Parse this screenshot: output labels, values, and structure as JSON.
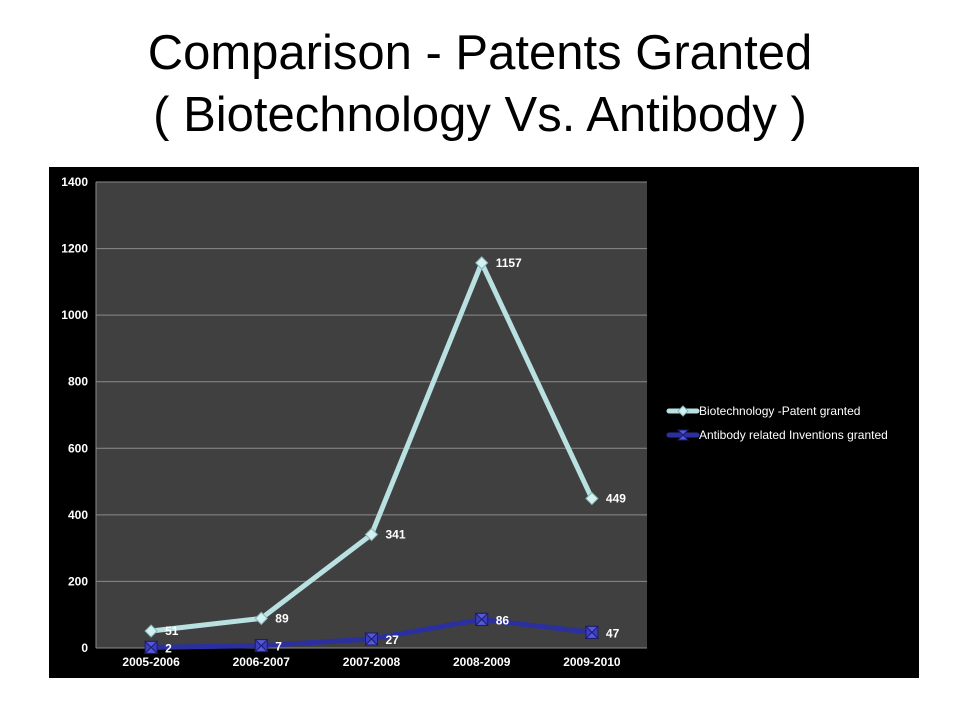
{
  "slide": {
    "title_line1": "Comparison - Patents Granted",
    "title_line2": "( Biotechnology Vs. Antibody )"
  },
  "chart_data": {
    "type": "line",
    "categories": [
      "2005-2006",
      "2006-2007",
      "2007-2008",
      "2008-2009",
      "2009-2010"
    ],
    "series": [
      {
        "name": "Biotechnology -Patent granted",
        "values": [
          51,
          89,
          341,
          1157,
          449
        ],
        "color": "#b9e1e2",
        "marker": "diamond"
      },
      {
        "name": "Antibody related Inventions granted",
        "values": [
          2,
          7,
          27,
          86,
          47
        ],
        "color": "#2c2f9e",
        "marker": "hourglass"
      }
    ],
    "yticks": [
      0,
      200,
      400,
      600,
      800,
      1000,
      1200,
      1400
    ],
    "ylim": [
      0,
      1400
    ],
    "grid": true,
    "data_labels": true,
    "legend_position": "right",
    "plot_background": "#404040",
    "chart_background": "#000000"
  }
}
